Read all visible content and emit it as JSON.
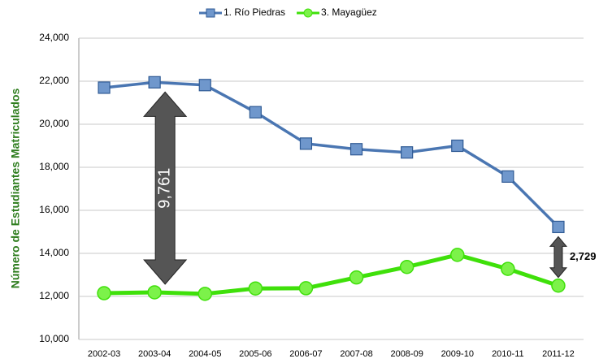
{
  "chart_data": {
    "type": "line",
    "ylabel": "Número de Estudiantes Matriculados",
    "categories": [
      "2002-03",
      "2003-04",
      "2004-05",
      "2005-06",
      "2006-07",
      "2007-08",
      "2008-09",
      "2009-10",
      "2010-11",
      "2011-12"
    ],
    "series": [
      {
        "name": "1. Río Piedras",
        "color": "#4a76b2",
        "marker": "square",
        "values": [
          21700,
          21950,
          21820,
          20560,
          19100,
          18840,
          18690,
          19000,
          17570,
          15229
        ]
      },
      {
        "name": "3. Mayagüez",
        "color": "#3fe00a",
        "marker": "circle",
        "values": [
          12150,
          12189,
          12120,
          12370,
          12380,
          12880,
          13370,
          13930,
          13280,
          12500
        ]
      }
    ],
    "ylim": [
      10000,
      24000
    ],
    "yticks": [
      {
        "value": 10000,
        "label": "10,000"
      },
      {
        "value": 12000,
        "label": "12,000"
      },
      {
        "value": 14000,
        "label": "14,000"
      },
      {
        "value": 16000,
        "label": "16,000"
      },
      {
        "value": 18000,
        "label": "18,000"
      },
      {
        "value": 20000,
        "label": "20,000"
      },
      {
        "value": 22000,
        "label": "22,000"
      },
      {
        "value": 24000,
        "label": "24,000"
      }
    ],
    "grid": true,
    "legend": "top",
    "annotations": [
      {
        "text": "9,761",
        "category": 1
      },
      {
        "text": "2,729",
        "category": 9
      }
    ]
  }
}
